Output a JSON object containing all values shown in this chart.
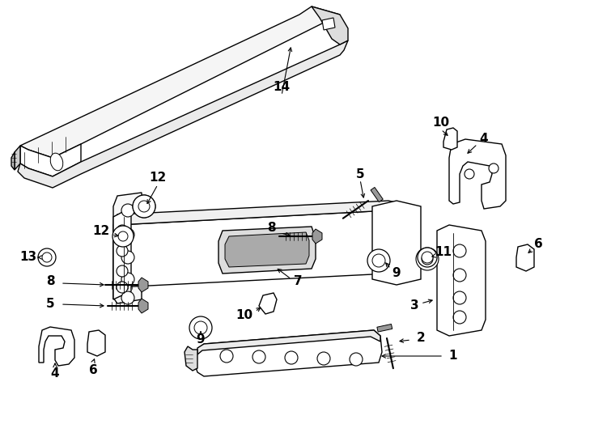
{
  "bg_color": "#ffffff",
  "line_color": "#000000",
  "lw": 1.0,
  "fig_width": 7.34,
  "fig_height": 5.4,
  "dpi": 100
}
